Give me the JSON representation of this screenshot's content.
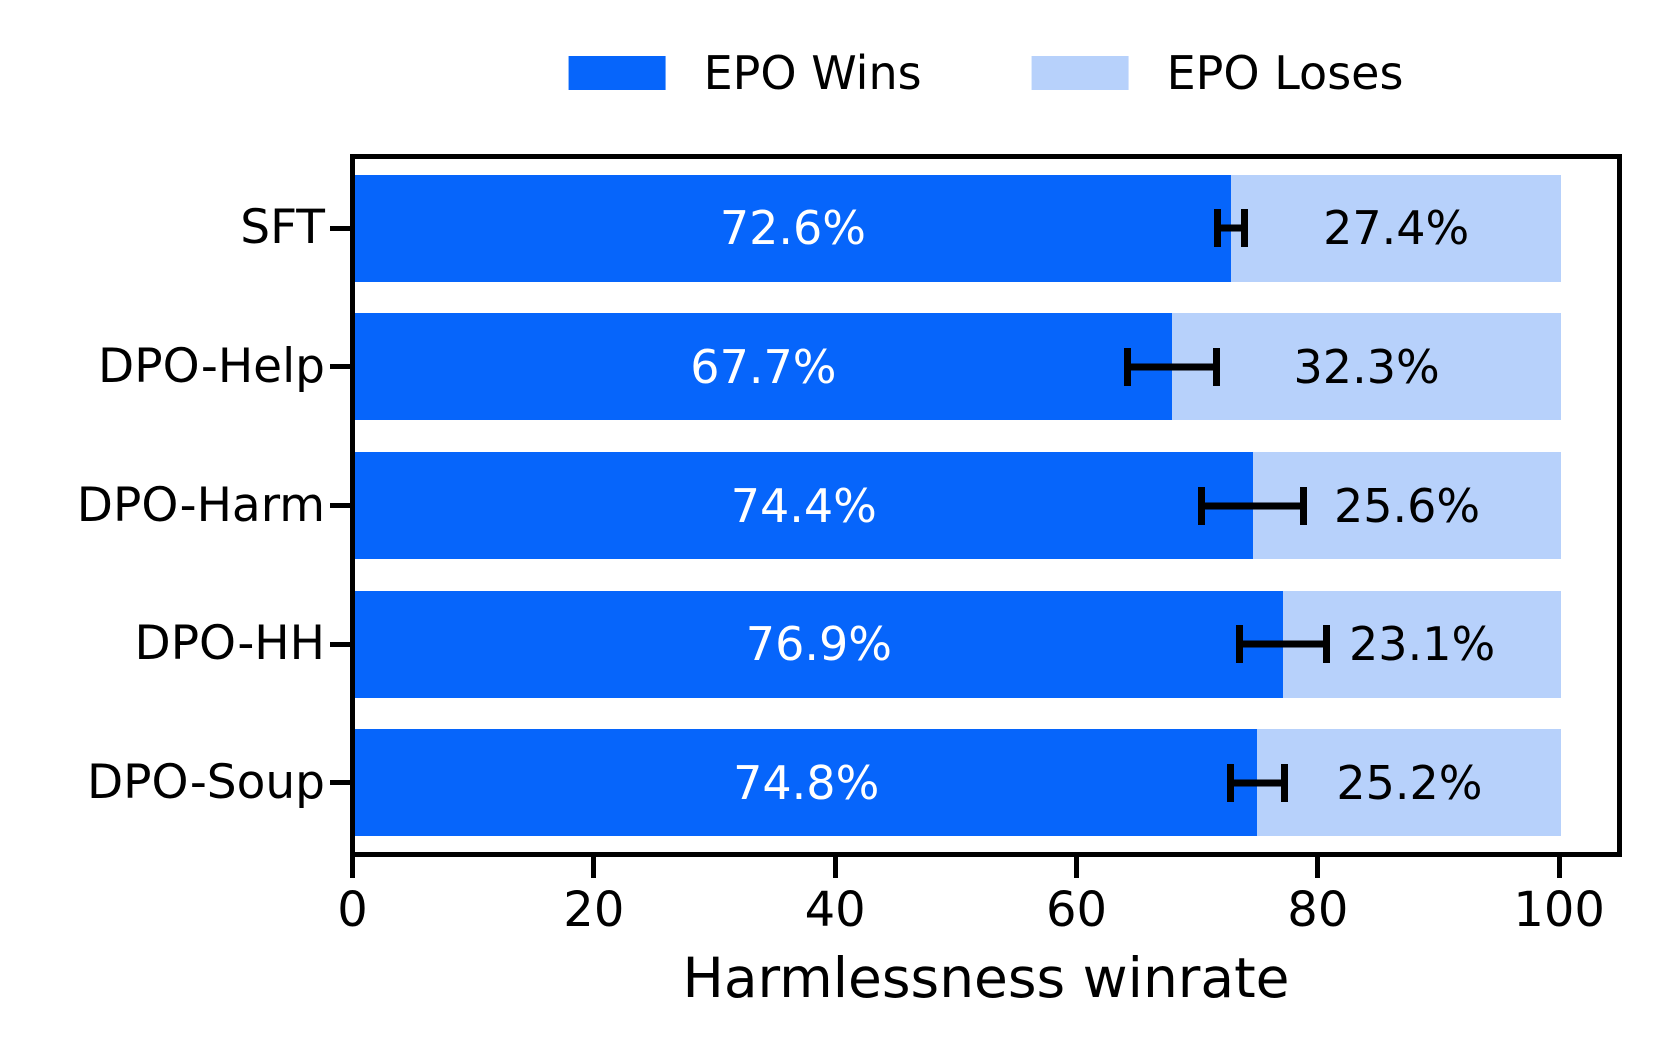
{
  "legend": {
    "items": [
      {
        "label": "EPO Wins",
        "color": "#0665FB"
      },
      {
        "label": "EPO Loses",
        "color": "#B7D1FB"
      }
    ]
  },
  "chart_data": {
    "type": "bar",
    "orientation": "horizontal",
    "stacked": true,
    "title": "",
    "xlabel": "Harmlessness winrate",
    "ylabel": "",
    "xlim": [
      0,
      105
    ],
    "grid": false,
    "legend_position": "top-center",
    "categories": [
      "SFT",
      "DPO-Help",
      "DPO-Harm",
      "DPO-HH",
      "DPO-Soup"
    ],
    "x_ticks": [
      "0",
      "20",
      "40",
      "60",
      "80",
      "100"
    ],
    "x_tick_values": [
      0,
      20,
      40,
      60,
      80,
      100
    ],
    "series": [
      {
        "name": "EPO Wins",
        "color": "#0665FB",
        "values": [
          72.6,
          67.7,
          74.4,
          76.9,
          74.8
        ]
      },
      {
        "name": "EPO Loses",
        "color": "#B7D1FB",
        "values": [
          27.4,
          32.3,
          25.6,
          23.1,
          25.2
        ]
      }
    ],
    "error_bars": {
      "attached_to": "EPO Wins segment end",
      "half_widths": [
        1.4,
        4.0,
        4.5,
        3.9,
        2.5
      ],
      "color": "#000000"
    },
    "rows": [
      {
        "category": "SFT",
        "win": 72.6,
        "lose": 27.4,
        "err": 1.4,
        "win_label": "72.6%",
        "lose_label": "27.4%"
      },
      {
        "category": "DPO-Help",
        "win": 67.7,
        "lose": 32.3,
        "err": 4.0,
        "win_label": "67.7%",
        "lose_label": "32.3%"
      },
      {
        "category": "DPO-Harm",
        "win": 74.4,
        "lose": 25.6,
        "err": 4.5,
        "win_label": "74.4%",
        "lose_label": "25.6%"
      },
      {
        "category": "DPO-HH",
        "win": 76.9,
        "lose": 23.1,
        "err": 3.9,
        "win_label": "76.9%",
        "lose_label": "23.1%"
      },
      {
        "category": "DPO-Soup",
        "win": 74.8,
        "lose": 25.2,
        "err": 2.5,
        "win_label": "74.8%",
        "lose_label": "25.2%"
      }
    ]
  }
}
